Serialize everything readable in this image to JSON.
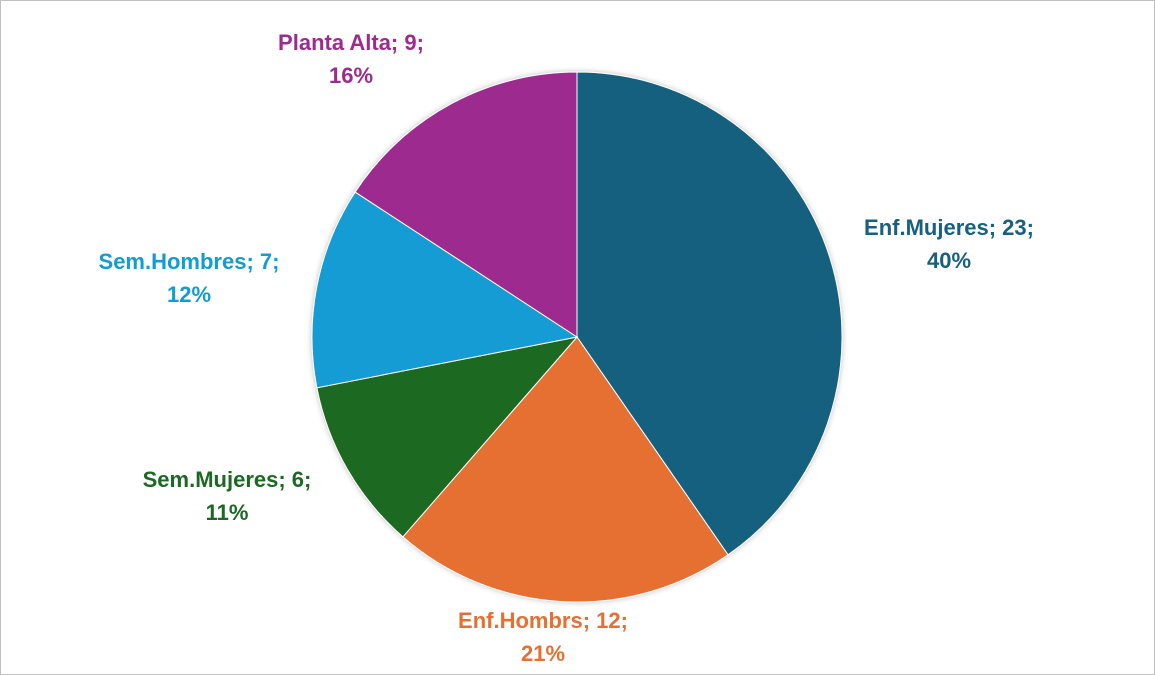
{
  "chart_data": {
    "type": "pie",
    "title": "",
    "slices": [
      {
        "label": "Enf.Mujeres",
        "value": 23,
        "percent": "40%",
        "color": "#17607F"
      },
      {
        "label": "Enf.Hombrs",
        "value": 12,
        "percent": "21%",
        "color": "#E66F32"
      },
      {
        "label": "Sem.Mujeres",
        "value": 6,
        "percent": "11%",
        "color": "#1C6923"
      },
      {
        "label": "Sem.Hombres",
        "value": 7,
        "percent": "12%",
        "color": "#129CD4"
      },
      {
        "label": "Planta Alta",
        "value": 9,
        "percent": "16%",
        "color": "#9D2A8F"
      }
    ],
    "start_angle_deg": 0,
    "direction": "clockwise",
    "legend": "none",
    "data_label_format": "{label}; {value};\n{percent}"
  }
}
